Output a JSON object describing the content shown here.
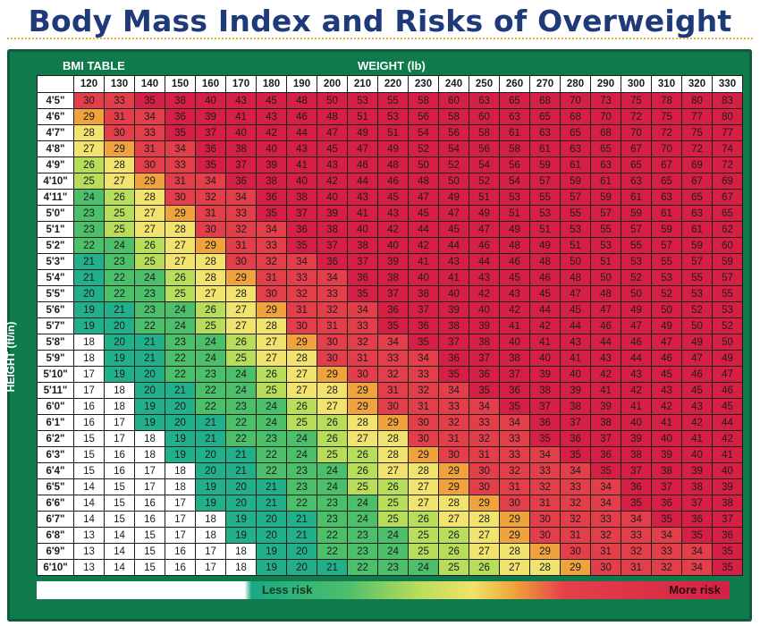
{
  "title": "Body Mass Index and Risks of Overweight",
  "table_label": "BMI TABLE",
  "x_label": "WEIGHT (lb)",
  "y_label": "HEIGHT (ft/in)",
  "legend": {
    "less": "Less risk",
    "more": "More risk"
  },
  "colors": {
    "low": "#ffffff",
    "teal": "#21b08a",
    "green": "#4cbf6a",
    "lime": "#b7dd5b",
    "yellow": "#f1e36d",
    "orange": "#f0a33c",
    "red": "#e23f4b",
    "deep_red": "#d51f45"
  },
  "chart_data": {
    "type": "heatmap",
    "title": "Body Mass Index and Risks of Overweight",
    "xlabel": "WEIGHT (lb)",
    "ylabel": "HEIGHT (ft/in)",
    "weights": [
      120,
      130,
      140,
      150,
      160,
      170,
      180,
      190,
      200,
      210,
      220,
      230,
      240,
      250,
      260,
      270,
      280,
      290,
      300,
      310,
      320,
      330
    ],
    "heights": [
      "4'5\"",
      "4'6\"",
      "4'7\"",
      "4'8\"",
      "4'9\"",
      "4'10\"",
      "4'11\"",
      "5'0\"",
      "5'1\"",
      "5'2\"",
      "5'3\"",
      "5'4\"",
      "5'5\"",
      "5'6\"",
      "5'7\"",
      "5'8\"",
      "5'9\"",
      "5'10\"",
      "5'11\"",
      "6'0\"",
      "6'1\"",
      "6'2\"",
      "6'3\"",
      "6'4\"",
      "6'5\"",
      "6'6\"",
      "6'7\"",
      "6'8\"",
      "6'9\"",
      "6'10\""
    ],
    "values": [
      [
        30,
        33,
        35,
        38,
        40,
        43,
        45,
        48,
        50,
        53,
        55,
        58,
        60,
        63,
        65,
        68,
        70,
        73,
        75,
        78,
        80,
        83
      ],
      [
        29,
        31,
        34,
        36,
        39,
        41,
        43,
        46,
        48,
        51,
        53,
        56,
        58,
        60,
        63,
        65,
        68,
        70,
        72,
        75,
        77,
        80
      ],
      [
        28,
        30,
        33,
        35,
        37,
        40,
        42,
        44,
        47,
        49,
        51,
        54,
        56,
        58,
        61,
        63,
        65,
        68,
        70,
        72,
        75,
        77
      ],
      [
        27,
        29,
        31,
        34,
        36,
        38,
        40,
        43,
        45,
        47,
        49,
        52,
        54,
        56,
        58,
        61,
        63,
        65,
        67,
        70,
        72,
        74
      ],
      [
        26,
        28,
        30,
        33,
        35,
        37,
        39,
        41,
        43,
        46,
        48,
        50,
        52,
        54,
        56,
        59,
        61,
        63,
        65,
        67,
        69,
        72
      ],
      [
        25,
        27,
        29,
        31,
        34,
        36,
        38,
        40,
        42,
        44,
        46,
        48,
        50,
        52,
        54,
        57,
        59,
        61,
        63,
        65,
        67,
        69
      ],
      [
        24,
        26,
        28,
        30,
        32,
        34,
        36,
        38,
        40,
        43,
        45,
        47,
        49,
        51,
        53,
        55,
        57,
        59,
        61,
        63,
        65,
        67
      ],
      [
        23,
        25,
        27,
        29,
        31,
        33,
        35,
        37,
        39,
        41,
        43,
        45,
        47,
        49,
        51,
        53,
        55,
        57,
        59,
        61,
        63,
        65
      ],
      [
        23,
        25,
        27,
        28,
        30,
        32,
        34,
        36,
        38,
        40,
        42,
        44,
        45,
        47,
        49,
        51,
        53,
        55,
        57,
        59,
        61,
        62
      ],
      [
        22,
        24,
        26,
        27,
        29,
        31,
        33,
        35,
        37,
        38,
        40,
        42,
        44,
        46,
        48,
        49,
        51,
        53,
        55,
        57,
        59,
        60
      ],
      [
        21,
        23,
        25,
        27,
        28,
        30,
        32,
        34,
        36,
        37,
        39,
        41,
        43,
        44,
        46,
        48,
        50,
        51,
        53,
        55,
        57,
        59
      ],
      [
        21,
        22,
        24,
        26,
        28,
        29,
        31,
        33,
        34,
        36,
        38,
        40,
        41,
        43,
        45,
        46,
        48,
        50,
        52,
        53,
        55,
        57
      ],
      [
        20,
        22,
        23,
        25,
        27,
        28,
        30,
        32,
        33,
        35,
        37,
        38,
        40,
        42,
        43,
        45,
        47,
        48,
        50,
        52,
        53,
        55
      ],
      [
        19,
        21,
        23,
        24,
        26,
        27,
        29,
        31,
        32,
        34,
        36,
        37,
        39,
        40,
        42,
        44,
        45,
        47,
        49,
        50,
        52,
        53
      ],
      [
        19,
        20,
        22,
        24,
        25,
        27,
        28,
        30,
        31,
        33,
        35,
        36,
        38,
        39,
        41,
        42,
        44,
        46,
        47,
        49,
        50,
        52
      ],
      [
        18,
        20,
        21,
        23,
        24,
        26,
        27,
        29,
        30,
        32,
        34,
        35,
        37,
        38,
        40,
        41,
        43,
        44,
        46,
        47,
        49,
        50
      ],
      [
        18,
        19,
        21,
        22,
        24,
        25,
        27,
        28,
        30,
        31,
        33,
        34,
        36,
        37,
        38,
        40,
        41,
        43,
        44,
        46,
        47,
        49
      ],
      [
        17,
        19,
        20,
        22,
        23,
        24,
        26,
        27,
        29,
        30,
        32,
        33,
        35,
        36,
        37,
        39,
        40,
        42,
        43,
        45,
        46,
        47
      ],
      [
        17,
        18,
        20,
        21,
        22,
        24,
        25,
        27,
        28,
        29,
        31,
        32,
        34,
        35,
        36,
        38,
        39,
        41,
        42,
        43,
        45,
        46
      ],
      [
        16,
        18,
        19,
        20,
        22,
        23,
        24,
        26,
        27,
        29,
        30,
        31,
        33,
        34,
        35,
        37,
        38,
        39,
        41,
        42,
        43,
        45
      ],
      [
        16,
        17,
        19,
        20,
        21,
        22,
        24,
        25,
        26,
        28,
        29,
        30,
        32,
        33,
        34,
        36,
        37,
        38,
        40,
        41,
        42,
        44
      ],
      [
        15,
        17,
        18,
        19,
        21,
        22,
        23,
        24,
        26,
        27,
        28,
        30,
        31,
        32,
        33,
        35,
        36,
        37,
        39,
        40,
        41,
        42
      ],
      [
        15,
        16,
        18,
        19,
        20,
        21,
        22,
        24,
        25,
        26,
        28,
        29,
        30,
        31,
        33,
        34,
        35,
        36,
        38,
        39,
        40,
        41
      ],
      [
        15,
        16,
        17,
        18,
        20,
        21,
        22,
        23,
        24,
        26,
        27,
        28,
        29,
        30,
        32,
        33,
        34,
        35,
        37,
        38,
        39,
        40
      ],
      [
        14,
        15,
        17,
        18,
        19,
        20,
        21,
        23,
        24,
        25,
        26,
        27,
        29,
        30,
        31,
        32,
        33,
        34,
        36,
        37,
        38,
        39
      ],
      [
        14,
        15,
        16,
        17,
        19,
        20,
        21,
        22,
        23,
        24,
        25,
        27,
        28,
        29,
        30,
        31,
        32,
        34,
        35,
        36,
        37,
        38
      ],
      [
        14,
        15,
        16,
        17,
        18,
        19,
        20,
        21,
        23,
        24,
        25,
        26,
        27,
        28,
        29,
        30,
        32,
        33,
        34,
        35,
        36,
        37
      ],
      [
        13,
        14,
        15,
        17,
        18,
        19,
        20,
        21,
        22,
        23,
        24,
        25,
        26,
        27,
        29,
        30,
        31,
        32,
        33,
        34,
        35,
        36
      ],
      [
        13,
        14,
        15,
        16,
        17,
        18,
        19,
        20,
        22,
        23,
        24,
        25,
        26,
        27,
        28,
        29,
        30,
        31,
        32,
        33,
        34,
        35
      ],
      [
        13,
        14,
        15,
        16,
        17,
        18,
        19,
        20,
        21,
        22,
        23,
        24,
        25,
        26,
        27,
        28,
        29,
        30,
        31,
        32,
        34,
        35
      ]
    ]
  }
}
